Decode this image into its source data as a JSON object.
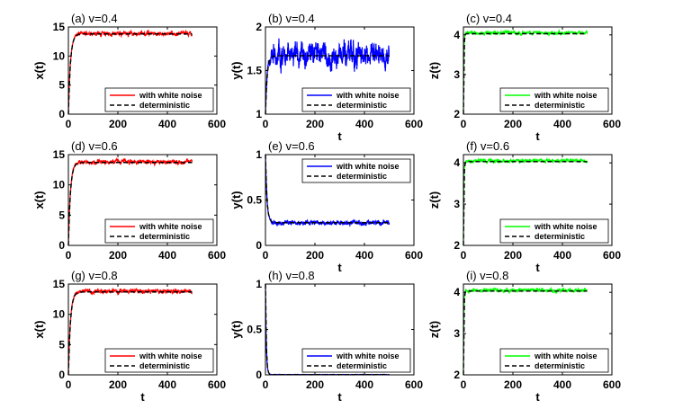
{
  "chart_data": [
    {
      "type": "line",
      "title": "(a) v=0.4",
      "xlabel": "",
      "ylabel": "x(t)",
      "xlim": [
        0,
        600
      ],
      "ylim": [
        0,
        15
      ],
      "xticks": [
        0,
        200,
        400,
        600
      ],
      "yticks": [
        0,
        5,
        10,
        15
      ],
      "legend_position": "bottom-right",
      "series": [
        {
          "name": "with white noise",
          "color": "#ff0000",
          "style": "solid",
          "x_end": 500,
          "rise_time": 25,
          "start": 0,
          "plateau": 13.9,
          "noise_amplitude": 0.35
        },
        {
          "name": "deterministic",
          "color": "#000000",
          "style": "dashed",
          "x_end": 500,
          "rise_time": 25,
          "start": 0,
          "plateau": 13.8
        }
      ]
    },
    {
      "type": "line",
      "title": "(b) v=0.4",
      "xlabel": "t",
      "ylabel": "y(t)",
      "xlim": [
        0,
        600
      ],
      "ylim": [
        1,
        2
      ],
      "xticks": [
        0,
        200,
        400,
        600
      ],
      "yticks": [
        1,
        1.5,
        2
      ],
      "legend_position": "bottom-right",
      "series": [
        {
          "name": "with white noise",
          "color": "#0000ff",
          "style": "solid",
          "x_end": 500,
          "rise_time": 20,
          "start": 1,
          "plateau": 1.68,
          "noise_amplitude": 0.13
        },
        {
          "name": "deterministic",
          "color": "#000000",
          "style": "dashed",
          "x_end": 500,
          "rise_time": 20,
          "start": 1,
          "plateau": 1.67
        }
      ]
    },
    {
      "type": "line",
      "title": "(c) v=0.4",
      "xlabel": "t",
      "ylabel": "z(t)",
      "xlim": [
        0,
        600
      ],
      "ylim": [
        2,
        4.2
      ],
      "xticks": [
        0,
        200,
        400,
        600
      ],
      "yticks": [
        2,
        3,
        4
      ],
      "legend_position": "bottom-right",
      "series": [
        {
          "name": "with white noise",
          "color": "#00ff00",
          "style": "solid",
          "x_end": 500,
          "rise_time": 5,
          "start": 2,
          "plateau": 4.05,
          "noise_amplitude": 0.04
        },
        {
          "name": "deterministic",
          "color": "#000000",
          "style": "dashed",
          "x_end": 500,
          "rise_time": 5,
          "start": 2,
          "plateau": 4.03
        }
      ]
    },
    {
      "type": "line",
      "title": "(d) v=0.6",
      "xlabel": "",
      "ylabel": "x(t)",
      "xlim": [
        0,
        600
      ],
      "ylim": [
        0,
        15
      ],
      "xticks": [
        0,
        200,
        400,
        600
      ],
      "yticks": [
        0,
        5,
        10,
        15
      ],
      "legend_position": "bottom-right",
      "series": [
        {
          "name": "with white noise",
          "color": "#ff0000",
          "style": "solid",
          "x_end": 500,
          "rise_time": 25,
          "start": 0,
          "plateau": 13.8,
          "noise_amplitude": 0.35
        },
        {
          "name": "deterministic",
          "color": "#000000",
          "style": "dashed",
          "x_end": 500,
          "rise_time": 25,
          "start": 0,
          "plateau": 13.7
        }
      ]
    },
    {
      "type": "line",
      "title": "(e) v=0.6",
      "xlabel": "t",
      "ylabel": "y(t)",
      "xlim": [
        0,
        600
      ],
      "ylim": [
        0,
        1
      ],
      "xticks": [
        0,
        200,
        400,
        600
      ],
      "yticks": [
        0,
        0.5,
        1
      ],
      "legend_position": "top-right",
      "series": [
        {
          "name": "with white noise",
          "color": "#0000ff",
          "style": "solid",
          "x_end": 500,
          "rise_time": 18,
          "start": 1,
          "plateau": 0.25,
          "noise_amplitude": 0.025
        },
        {
          "name": "deterministic",
          "color": "#000000",
          "style": "dashed",
          "x_end": 500,
          "rise_time": 18,
          "start": 1,
          "plateau": 0.25
        }
      ]
    },
    {
      "type": "line",
      "title": "(f) v=0.6",
      "xlabel": "t",
      "ylabel": "z(t)",
      "xlim": [
        0,
        600
      ],
      "ylim": [
        2,
        4.2
      ],
      "xticks": [
        0,
        200,
        400,
        600
      ],
      "yticks": [
        2,
        3,
        4
      ],
      "legend_position": "bottom-right",
      "series": [
        {
          "name": "with white noise",
          "color": "#00ff00",
          "style": "solid",
          "x_end": 500,
          "rise_time": 5,
          "start": 2,
          "plateau": 4.05,
          "noise_amplitude": 0.04
        },
        {
          "name": "deterministic",
          "color": "#000000",
          "style": "dashed",
          "x_end": 500,
          "rise_time": 5,
          "start": 2,
          "plateau": 4.03
        }
      ]
    },
    {
      "type": "line",
      "title": "(g) v=0.8",
      "xlabel": "t",
      "ylabel": "x(t)",
      "xlim": [
        0,
        600
      ],
      "ylim": [
        0,
        15
      ],
      "xticks": [
        0,
        200,
        400,
        600
      ],
      "yticks": [
        0,
        5,
        10,
        15
      ],
      "legend_position": "bottom-right",
      "series": [
        {
          "name": "with white noise",
          "color": "#ff0000",
          "style": "solid",
          "x_end": 500,
          "rise_time": 25,
          "start": 0,
          "plateau": 13.8,
          "noise_amplitude": 0.35
        },
        {
          "name": "deterministic",
          "color": "#000000",
          "style": "dashed",
          "x_end": 500,
          "rise_time": 25,
          "start": 0,
          "plateau": 13.7
        }
      ]
    },
    {
      "type": "line",
      "title": "(h) v=0.8",
      "xlabel": "t",
      "ylabel": "y(t)",
      "xlim": [
        0,
        600
      ],
      "ylim": [
        0,
        1
      ],
      "xticks": [
        0,
        200,
        400,
        600
      ],
      "yticks": [
        0,
        0.5,
        1
      ],
      "legend_position": "bottom-right",
      "series": [
        {
          "name": "with white noise",
          "color": "#0000ff",
          "style": "solid",
          "x_end": 500,
          "rise_time": 10,
          "start": 1,
          "plateau": 0.003,
          "noise_amplitude": 0.002
        },
        {
          "name": "deterministic",
          "color": "#000000",
          "style": "dashed",
          "x_end": 500,
          "rise_time": 10,
          "start": 1,
          "plateau": 0.003
        }
      ]
    },
    {
      "type": "line",
      "title": "(i) v=0.8",
      "xlabel": "t",
      "ylabel": "z(t)",
      "xlim": [
        0,
        600
      ],
      "ylim": [
        2,
        4.2
      ],
      "xticks": [
        0,
        200,
        400,
        600
      ],
      "yticks": [
        2,
        3,
        4
      ],
      "legend_position": "bottom-right",
      "series": [
        {
          "name": "with white noise",
          "color": "#00ff00",
          "style": "solid",
          "x_end": 500,
          "rise_time": 5,
          "start": 2,
          "plateau": 4.05,
          "noise_amplitude": 0.04
        },
        {
          "name": "deterministic",
          "color": "#000000",
          "style": "dashed",
          "x_end": 500,
          "rise_time": 5,
          "start": 2,
          "plateau": 4.03
        }
      ]
    }
  ]
}
